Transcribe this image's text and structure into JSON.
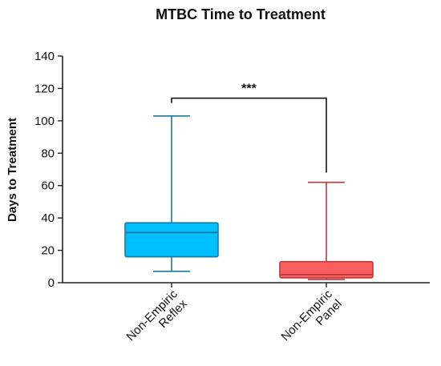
{
  "chart_data": {
    "type": "box",
    "title": "MTBC Time to Treatment",
    "xlabel": "",
    "ylabel": "Days to Treatment",
    "ylim": [
      0,
      140
    ],
    "yticks": [
      0,
      20,
      40,
      60,
      80,
      100,
      120,
      140
    ],
    "grid": false,
    "categories": [
      "Non-Empiric Reflex",
      "Non-Empiric Panel"
    ],
    "category_lines": [
      [
        "Non-Empiric",
        "Reflex"
      ],
      [
        "Non-Empiric",
        "Panel"
      ]
    ],
    "boxes": [
      {
        "category": "Non-Empiric Reflex",
        "min": 7,
        "q1": 16,
        "median": 31,
        "q3": 37,
        "max": 103,
        "fill": "#00bfff",
        "stroke": "#1a7a9e"
      },
      {
        "category": "Non-Empiric Panel",
        "min": 2,
        "q1": 3,
        "median": 5,
        "q3": 13,
        "max": 62,
        "fill": "#f95f5f",
        "stroke": "#b83a3a"
      }
    ],
    "significance": {
      "label": "***",
      "y": 114,
      "from": 0,
      "to": 1,
      "left_drop": 111,
      "right_drop": 68
    }
  }
}
